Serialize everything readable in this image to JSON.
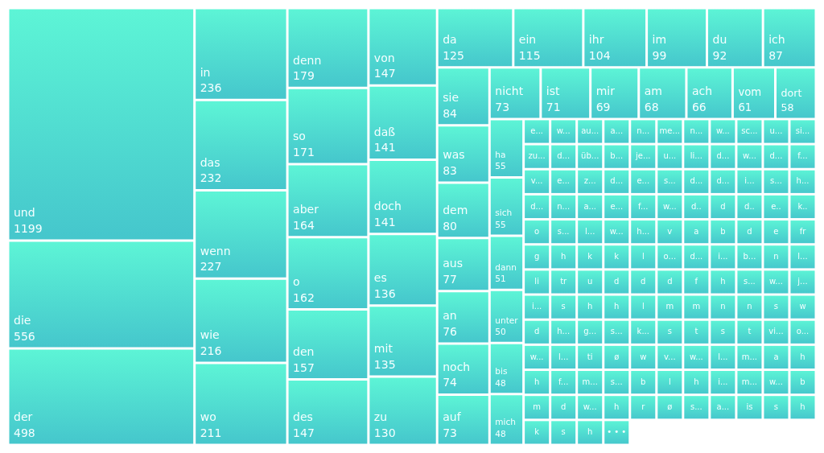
{
  "chart_data": {
    "type": "other",
    "categories": [
      "und",
      "die",
      "der",
      "in",
      "das",
      "wenn",
      "wie",
      "wo",
      "denn",
      "so",
      "aber",
      "o",
      "den",
      "des",
      "von",
      "daß",
      "doch",
      "es",
      "mit",
      "zu",
      "da",
      "ein",
      "ihr",
      "im",
      "du",
      "ich",
      "sie",
      "was",
      "dem",
      "aus",
      "an",
      "noch",
      "auf",
      "nicht",
      "ist",
      "mir",
      "am",
      "ach",
      "vom",
      "dort",
      "ha",
      "sich",
      "dann",
      "unter",
      "bis",
      "mich",
      "e...",
      "w...",
      "au...",
      "a...",
      "n...",
      "me...",
      "n...",
      "w...",
      "sc...",
      "u...",
      "si...",
      "zu...",
      "d...",
      "üb...",
      "b...",
      "je...",
      "u...",
      "li...",
      "d...",
      "w...",
      "d...",
      "f...",
      "v...",
      "e...",
      "z...",
      "d...",
      "e...",
      "s...",
      "d...",
      "d...",
      "i...",
      "s...",
      "h...",
      "d...",
      "n...",
      "a...",
      "e...",
      "f...",
      "w...",
      "d..",
      "d",
      "d..",
      "e..",
      "k..",
      "o",
      "s...",
      "l...",
      "w...",
      "h...",
      "v",
      "a",
      "b",
      "d",
      "e",
      "fr",
      "g",
      "h",
      "k",
      "k",
      "l",
      "o...",
      "d...",
      "i...",
      "b...",
      "n",
      "l...",
      "li",
      "tr",
      "u",
      "d",
      "d",
      "d",
      "f",
      "h",
      "s...",
      "w...",
      "j...",
      "i...",
      "s",
      "h",
      "h",
      "l",
      "m",
      "m",
      "n",
      "n",
      "s",
      "w",
      "d",
      "h...",
      "g...",
      "s...",
      "k...",
      "s",
      "t",
      "s",
      "t",
      "vi...",
      "o...",
      "w...",
      "l...",
      "ti",
      "ø",
      "w",
      "v...",
      "w...",
      "l...",
      "m...",
      "a",
      "h",
      "h",
      "f...",
      "m...",
      "s...",
      "b",
      "l",
      "h",
      "i...",
      "m...",
      "w...",
      "b",
      "m",
      "d",
      "w...",
      "h",
      "r",
      "ø",
      "s...",
      "a...",
      "is",
      "s",
      "h",
      "k",
      "s",
      "h",
      "• • •"
    ],
    "values": [
      1199,
      556,
      498,
      236,
      232,
      227,
      216,
      211,
      179,
      171,
      164,
      162,
      157,
      147,
      147,
      141,
      141,
      136,
      135,
      130,
      125,
      115,
      104,
      99,
      92,
      87,
      84,
      83,
      80,
      77,
      76,
      74,
      73,
      73,
      71,
      69,
      68,
      66,
      61,
      58,
      55,
      55,
      51,
      50,
      48,
      48,
      null,
      null,
      null,
      null,
      null,
      null,
      null,
      null,
      null,
      null,
      null,
      null,
      null,
      null,
      null,
      null,
      null,
      null,
      null,
      null,
      null,
      null,
      null,
      null,
      null,
      null,
      null,
      null,
      null,
      null,
      null,
      null,
      null,
      null,
      null,
      null,
      null,
      null,
      null,
      null,
      null,
      null,
      null,
      null,
      null,
      null,
      null,
      null,
      null,
      null,
      null,
      null,
      null,
      null,
      null,
      null,
      null,
      null,
      null,
      null,
      null,
      null,
      null,
      null,
      null,
      null,
      null,
      null,
      null,
      null,
      null,
      null,
      null,
      null,
      null,
      null,
      null,
      null,
      null,
      null,
      null,
      null,
      null,
      null,
      null,
      null,
      null,
      null,
      null,
      null,
      null,
      null,
      null,
      null,
      null,
      null,
      null,
      null,
      null,
      null,
      null,
      null,
      null,
      null,
      null,
      null,
      null,
      null,
      null,
      null,
      null,
      null,
      null,
      null,
      null,
      null,
      null,
      null,
      null,
      null,
      null,
      null,
      null,
      null,
      null,
      null,
      null,
      null,
      null,
      null,
      null,
      null,
      null,
      null,
      null,
      null
    ],
    "color": "#45c6cc",
    "data_labels": true
  }
}
